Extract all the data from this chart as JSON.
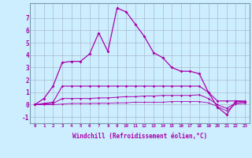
{
  "title": "",
  "xlabel": "Windchill (Refroidissement éolien,°C)",
  "ylabel": "",
  "background_color": "#cceeff",
  "grid_color": "#aabbcc",
  "line_color": "#aa00aa",
  "xlim": [
    -0.5,
    23.5
  ],
  "ylim": [
    -1.5,
    8.2
  ],
  "yticks": [
    -1,
    0,
    1,
    2,
    3,
    4,
    5,
    6,
    7
  ],
  "xticks": [
    0,
    1,
    2,
    3,
    4,
    5,
    6,
    7,
    8,
    9,
    10,
    11,
    12,
    13,
    14,
    15,
    16,
    17,
    18,
    19,
    20,
    21,
    22,
    23
  ],
  "series1_x": [
    0,
    1,
    2,
    3,
    4,
    5,
    6,
    7,
    8,
    9,
    10,
    11,
    12,
    13,
    14,
    15,
    16,
    17,
    18,
    19,
    20,
    21,
    22,
    23
  ],
  "series1_y": [
    0.0,
    0.5,
    1.5,
    3.4,
    3.5,
    3.5,
    4.1,
    5.8,
    4.3,
    7.8,
    7.5,
    6.5,
    5.5,
    4.2,
    3.8,
    3.0,
    2.7,
    2.7,
    2.5,
    1.0,
    -0.2,
    -0.8,
    0.3,
    0.2
  ],
  "series2_x": [
    0,
    1,
    2,
    3,
    4,
    5,
    6,
    7,
    8,
    9,
    10,
    11,
    12,
    13,
    14,
    15,
    16,
    17,
    18,
    19,
    20,
    21,
    22,
    23
  ],
  "series2_y": [
    0.0,
    0.1,
    0.2,
    1.5,
    1.5,
    1.5,
    1.5,
    1.5,
    1.5,
    1.5,
    1.5,
    1.5,
    1.5,
    1.5,
    1.5,
    1.5,
    1.5,
    1.5,
    1.5,
    1.0,
    0.3,
    0.3,
    0.3,
    0.3
  ],
  "series3_x": [
    0,
    1,
    2,
    3,
    4,
    5,
    6,
    7,
    8,
    9,
    10,
    11,
    12,
    13,
    14,
    15,
    16,
    17,
    18,
    19,
    20,
    21,
    22,
    23
  ],
  "series3_y": [
    0.0,
    0.05,
    0.1,
    0.5,
    0.5,
    0.5,
    0.5,
    0.55,
    0.55,
    0.6,
    0.65,
    0.65,
    0.7,
    0.7,
    0.75,
    0.75,
    0.75,
    0.75,
    0.8,
    0.5,
    0.0,
    -0.3,
    0.15,
    0.2
  ],
  "series4_x": [
    0,
    1,
    2,
    3,
    4,
    5,
    6,
    7,
    8,
    9,
    10,
    11,
    12,
    13,
    14,
    15,
    16,
    17,
    18,
    19,
    20,
    21,
    22,
    23
  ],
  "series4_y": [
    0.0,
    0.0,
    0.0,
    0.05,
    0.1,
    0.1,
    0.1,
    0.12,
    0.12,
    0.15,
    0.15,
    0.2,
    0.2,
    0.2,
    0.2,
    0.25,
    0.25,
    0.25,
    0.25,
    0.15,
    -0.15,
    -0.5,
    0.05,
    0.1
  ]
}
